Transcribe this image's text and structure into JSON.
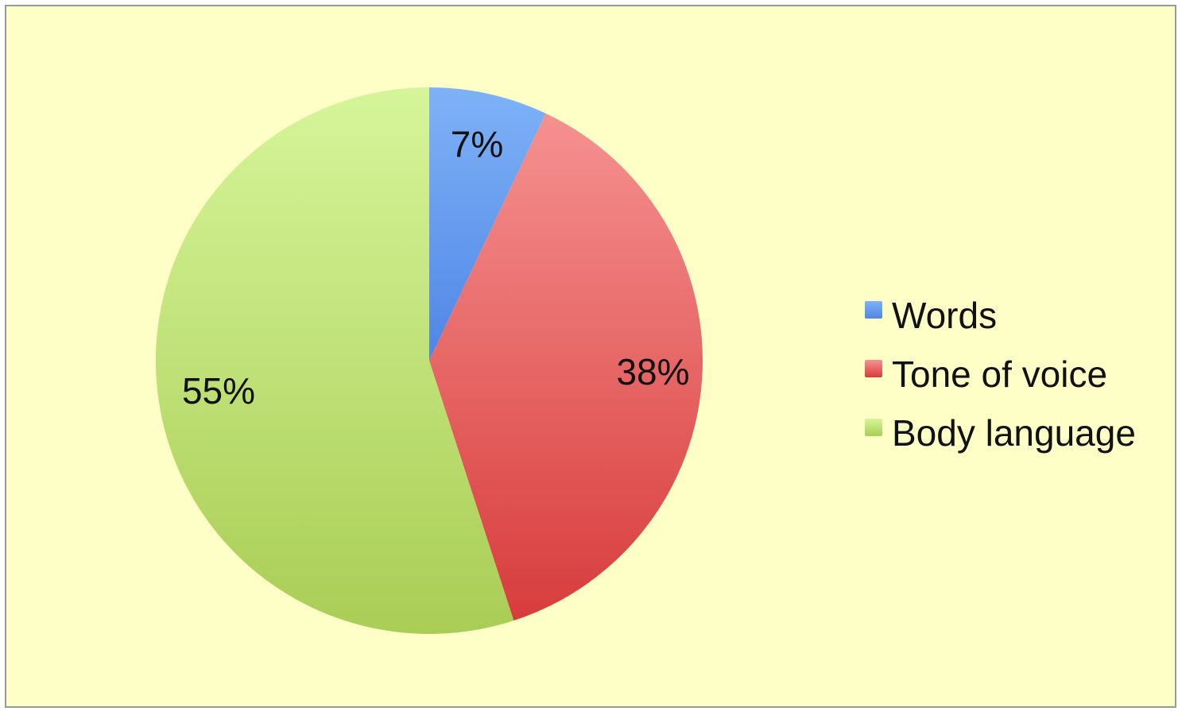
{
  "chart_data": {
    "type": "pie",
    "slices": [
      {
        "label": "Words",
        "value": 7,
        "display": "7%",
        "color": "#7eb2f7",
        "color_dark": "#4f86e6"
      },
      {
        "label": "Tone of voice",
        "value": 38,
        "display": "38%",
        "color": "#f59190",
        "color_dark": "#d83c3c"
      },
      {
        "label": "Body language",
        "value": 55,
        "display": "55%",
        "color": "#d6f59a",
        "color_dark": "#a9cd55"
      }
    ],
    "legend_position": "right",
    "background": "#fdffc6"
  }
}
